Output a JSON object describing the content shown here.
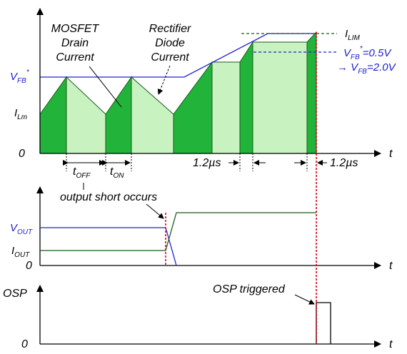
{
  "colors": {
    "dark_green": "#22b33a",
    "light_green": "#c8f2c0",
    "blue": "#2020d0",
    "red": "#e0001a",
    "dark_line": "#1b5a1b",
    "axis": "#000000"
  },
  "top_panel": {
    "t_axis": "t",
    "zero": "0",
    "vfb_label": "V",
    "vfb_sub": "FB",
    "vfb_sup": "*",
    "ilm_label": "I",
    "ilm_sub": "Lm",
    "ilim_label": "I",
    "ilim_sub": "LIM",
    "mosfet_line1": "MOSFET",
    "mosfet_line2": "Drain",
    "mosfet_line3": "Current",
    "rect_line1": "Rectifier",
    "rect_line2": "Diode",
    "rect_line3": "Current",
    "vfb_set_pre": "V",
    "vfb_set_sub": "FB",
    "vfb_set_sup": "*",
    "vfb_set_val": "=0.5V",
    "vfb_new_arrow": "→ V",
    "vfb_new_sub": "FB",
    "vfb_new_val": "=2.0V",
    "toff_label": "t",
    "toff_sub": "OFF",
    "ton_label": "t",
    "ton_sub": "ON",
    "time1": "1.2µs",
    "time2": "1.2µs"
  },
  "mid_panel": {
    "t_axis": "t",
    "zero": "0",
    "annotation": "output short occurs",
    "vout_label": "V",
    "vout_sub": "OUT",
    "iout_label": "I",
    "iout_sub": "OUT"
  },
  "bot_panel": {
    "t_axis": "t",
    "zero": "0",
    "osp_label": "OSP",
    "annotation": "OSP triggered"
  }
}
